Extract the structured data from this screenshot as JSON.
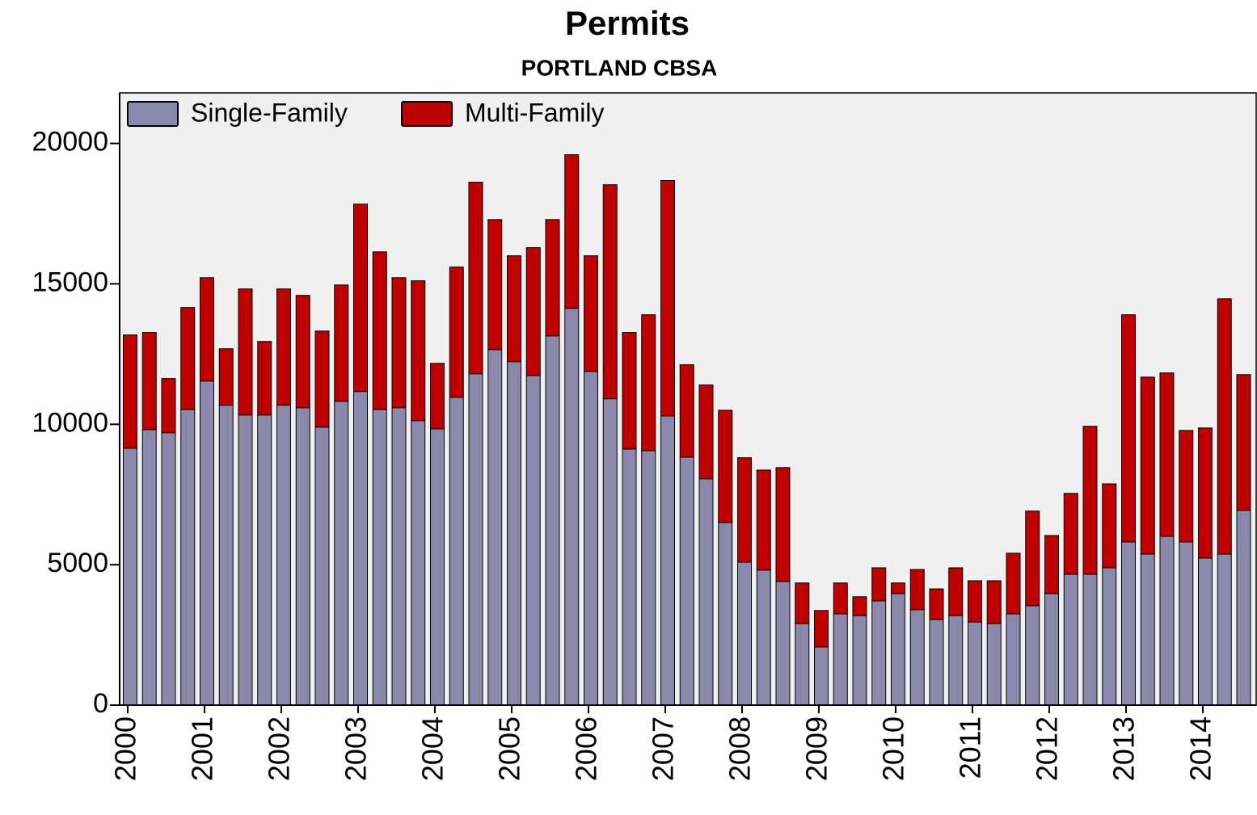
{
  "chart_data": {
    "type": "stacked-bar",
    "title": "Permits",
    "subtitle": "PORTLAND CBSA",
    "categories": [
      "2000",
      null,
      null,
      null,
      "2001",
      null,
      null,
      null,
      "2002",
      null,
      null,
      null,
      "2003",
      null,
      null,
      null,
      "2004",
      null,
      null,
      null,
      "2005",
      null,
      null,
      null,
      "2006",
      null,
      null,
      null,
      "2007",
      null,
      null,
      null,
      "2008",
      null,
      null,
      null,
      "2009",
      null,
      null,
      null,
      "2010",
      null,
      null,
      null,
      "2011",
      null,
      null,
      null,
      "2012",
      null,
      null,
      null,
      "2013",
      null,
      null,
      null,
      "2014",
      null,
      null
    ],
    "series": [
      {
        "name": "Single-Family",
        "color": "#8b89ab",
        "values": [
          9150,
          9810,
          9700,
          10530,
          11540,
          10680,
          10330,
          10330,
          10680,
          10590,
          9900,
          10820,
          11170,
          10530,
          10590,
          10130,
          9840,
          10960,
          11800,
          12660,
          12230,
          11740,
          13150,
          14130,
          11880,
          10910,
          9120,
          9060,
          10300,
          8830,
          8060,
          6500,
          5090,
          4810,
          4400,
          2910,
          2070,
          3250,
          3190,
          3710,
          3970,
          3400,
          3050,
          3190,
          2960,
          2910,
          3250,
          3540,
          3970,
          4660,
          4660,
          4890,
          5810,
          5380,
          6010,
          5810,
          5240,
          5380,
          6940
        ]
      },
      {
        "name": "Multi-Family",
        "color": "#c00000",
        "values": [
          4030,
          3460,
          1930,
          3630,
          3680,
          2010,
          4490,
          2620,
          4140,
          4000,
          3420,
          4140,
          6670,
          5610,
          4630,
          4980,
          2330,
          4640,
          6820,
          4630,
          3770,
          4550,
          4140,
          5470,
          4120,
          7620,
          4150,
          4840,
          8380,
          3290,
          3340,
          4000,
          3720,
          3560,
          4060,
          1440,
          1300,
          1100,
          670,
          1180,
          380,
          1430,
          1090,
          1700,
          1470,
          1520,
          2160,
          3370,
          2070,
          2880,
          5270,
          2990,
          8090,
          6300,
          5820,
          3970,
          4630,
          9090,
          4830
        ]
      }
    ],
    "ylim": [
      0,
      21800
    ],
    "yticks": [
      0,
      5000,
      10000,
      15000,
      20000
    ],
    "legend": "top-left",
    "background": "#f0f0f0"
  }
}
